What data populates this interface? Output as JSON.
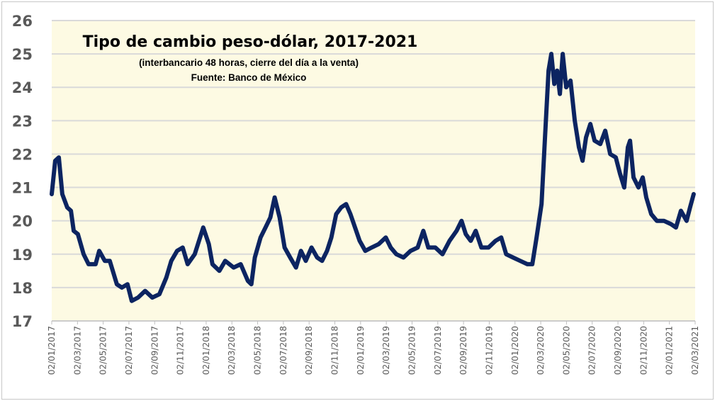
{
  "chart_data": {
    "type": "line",
    "title": "Tipo de cambio peso-dólar, 2017-2021",
    "subtitle": "(interbancario 48 horas, cierre del día a la venta)",
    "source": "Fuente: Banco de México",
    "xlabel": "",
    "ylabel": "",
    "ylim": [
      17,
      26
    ],
    "yticks": [
      "17",
      "18",
      "19",
      "20",
      "21",
      "22",
      "23",
      "24",
      "25",
      "26"
    ],
    "x_unit": "months since 02/01/2017",
    "xlim": [
      0,
      48
    ],
    "xticks": [
      "02/01/2017",
      "02/03/2017",
      "02/05/2017",
      "02/07/2017",
      "02/09/2017",
      "02/11/2017",
      "02/01/2018",
      "02/03/2018",
      "02/05/2018",
      "02/07/2018",
      "02/09/2018",
      "02/11/2018",
      "02/01/2019",
      "02/03/2019",
      "02/05/2019",
      "02/07/2019",
      "02/09/2019",
      "02/11/2019",
      "02/01/2020",
      "02/03/2020",
      "02/05/2020",
      "02/07/2020",
      "02/09/2020",
      "02/11/2020",
      "02/01/2021",
      "02/03/2021"
    ],
    "grid": true,
    "colors": {
      "line": "#0c2461",
      "plot_bg": "#fdfae3",
      "grid": "#d9d9d9"
    },
    "series": [
      {
        "name": "Tipo de cambio",
        "points": [
          [
            0,
            20.8
          ],
          [
            0.26,
            21.8
          ],
          [
            0.53,
            21.9
          ],
          [
            0.79,
            20.8
          ],
          [
            1.16,
            20.4
          ],
          [
            1.43,
            20.3
          ],
          [
            1.64,
            19.7
          ],
          [
            1.95,
            19.6
          ],
          [
            2.38,
            19.0
          ],
          [
            2.75,
            18.7
          ],
          [
            3.27,
            18.7
          ],
          [
            3.54,
            19.1
          ],
          [
            3.96,
            18.8
          ],
          [
            4.33,
            18.8
          ],
          [
            4.86,
            18.1
          ],
          [
            5.23,
            18.0
          ],
          [
            5.65,
            18.1
          ],
          [
            5.97,
            17.6
          ],
          [
            6.44,
            17.7
          ],
          [
            6.97,
            17.9
          ],
          [
            7.5,
            17.7
          ],
          [
            8.03,
            17.8
          ],
          [
            8.55,
            18.3
          ],
          [
            8.92,
            18.8
          ],
          [
            9.35,
            19.1
          ],
          [
            9.77,
            19.2
          ],
          [
            10.14,
            18.7
          ],
          [
            10.67,
            19.0
          ],
          [
            11.3,
            19.8
          ],
          [
            11.72,
            19.3
          ],
          [
            11.99,
            18.7
          ],
          [
            12.51,
            18.5
          ],
          [
            12.94,
            18.8
          ],
          [
            13.57,
            18.6
          ],
          [
            14.1,
            18.7
          ],
          [
            14.63,
            18.2
          ],
          [
            14.89,
            18.1
          ],
          [
            15.15,
            18.9
          ],
          [
            15.58,
            19.5
          ],
          [
            15.95,
            19.8
          ],
          [
            16.31,
            20.1
          ],
          [
            16.63,
            20.7
          ],
          [
            17.0,
            20.1
          ],
          [
            17.37,
            19.2
          ],
          [
            17.79,
            18.9
          ],
          [
            18.22,
            18.6
          ],
          [
            18.59,
            19.1
          ],
          [
            18.95,
            18.8
          ],
          [
            19.38,
            19.2
          ],
          [
            19.8,
            18.9
          ],
          [
            20.17,
            18.8
          ],
          [
            20.54,
            19.1
          ],
          [
            20.86,
            19.5
          ],
          [
            21.22,
            20.2
          ],
          [
            21.59,
            20.4
          ],
          [
            21.96,
            20.5
          ],
          [
            22.28,
            20.2
          ],
          [
            22.54,
            19.9
          ],
          [
            22.97,
            19.4
          ],
          [
            23.39,
            19.1
          ],
          [
            23.86,
            19.2
          ],
          [
            24.39,
            19.3
          ],
          [
            24.92,
            19.5
          ],
          [
            25.29,
            19.2
          ],
          [
            25.71,
            19.0
          ],
          [
            26.24,
            18.9
          ],
          [
            26.77,
            19.1
          ],
          [
            27.3,
            19.2
          ],
          [
            27.72,
            19.7
          ],
          [
            28.09,
            19.2
          ],
          [
            28.62,
            19.2
          ],
          [
            29.15,
            19.0
          ],
          [
            29.68,
            19.4
          ],
          [
            30.2,
            19.7
          ],
          [
            30.57,
            20.0
          ],
          [
            30.89,
            19.6
          ],
          [
            31.26,
            19.4
          ],
          [
            31.63,
            19.7
          ],
          [
            32.05,
            19.2
          ],
          [
            32.58,
            19.2
          ],
          [
            33.11,
            19.4
          ],
          [
            33.53,
            19.5
          ],
          [
            33.9,
            19.0
          ],
          [
            34.42,
            18.9
          ],
          [
            34.95,
            18.8
          ],
          [
            35.48,
            18.7
          ],
          [
            35.85,
            18.7
          ],
          [
            36.17,
            19.5
          ],
          [
            36.54,
            20.5
          ],
          [
            36.8,
            22.5
          ],
          [
            37.06,
            24.5
          ],
          [
            37.27,
            25.0
          ],
          [
            37.49,
            24.1
          ],
          [
            37.7,
            24.5
          ],
          [
            37.91,
            23.8
          ],
          [
            38.12,
            25.0
          ],
          [
            38.38,
            24.0
          ],
          [
            38.7,
            24.2
          ],
          [
            39.02,
            23.0
          ],
          [
            39.33,
            22.2
          ],
          [
            39.6,
            21.8
          ],
          [
            39.86,
            22.5
          ],
          [
            40.18,
            22.9
          ],
          [
            40.5,
            22.4
          ],
          [
            40.92,
            22.3
          ],
          [
            41.29,
            22.7
          ],
          [
            41.66,
            22.0
          ],
          [
            42.08,
            21.9
          ],
          [
            42.4,
            21.4
          ],
          [
            42.71,
            21.0
          ],
          [
            42.98,
            22.2
          ],
          [
            43.14,
            22.4
          ],
          [
            43.4,
            21.3
          ],
          [
            43.77,
            21.0
          ],
          [
            44.09,
            21.3
          ],
          [
            44.35,
            20.7
          ],
          [
            44.72,
            20.2
          ],
          [
            45.14,
            20.0
          ],
          [
            45.67,
            20.0
          ],
          [
            46.2,
            19.9
          ],
          [
            46.57,
            19.8
          ],
          [
            46.94,
            20.3
          ],
          [
            47.36,
            20.0
          ],
          [
            47.62,
            20.4
          ],
          [
            47.89,
            20.8
          ]
        ]
      }
    ]
  }
}
